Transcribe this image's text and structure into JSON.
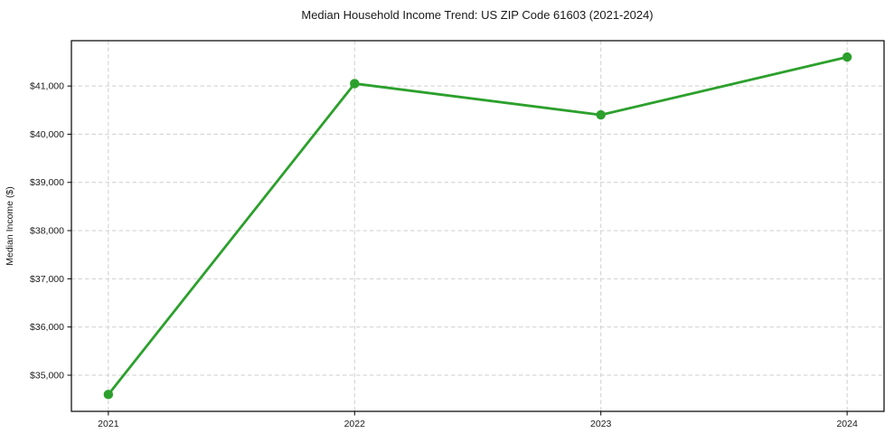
{
  "page": {
    "background": "#ffffff"
  },
  "chart_data": {
    "type": "line",
    "title": "Median Household Income Trend: US ZIP Code 61603 (2021-2024)",
    "xlabel": "",
    "ylabel": "Median Income ($)",
    "x": [
      "2021",
      "2022",
      "2023",
      "2024"
    ],
    "values": [
      34600,
      41050,
      40400,
      41600
    ],
    "ylim": [
      34250,
      41940
    ],
    "yticks": [
      35000,
      36000,
      37000,
      38000,
      39000,
      40000,
      41000
    ],
    "ytick_prefix": "$",
    "grid": true,
    "legend": "none",
    "line_color": "#2ca02c",
    "marker_color": "#2ca02c",
    "marker": "circle",
    "grid_color": "#cfcfcf"
  }
}
